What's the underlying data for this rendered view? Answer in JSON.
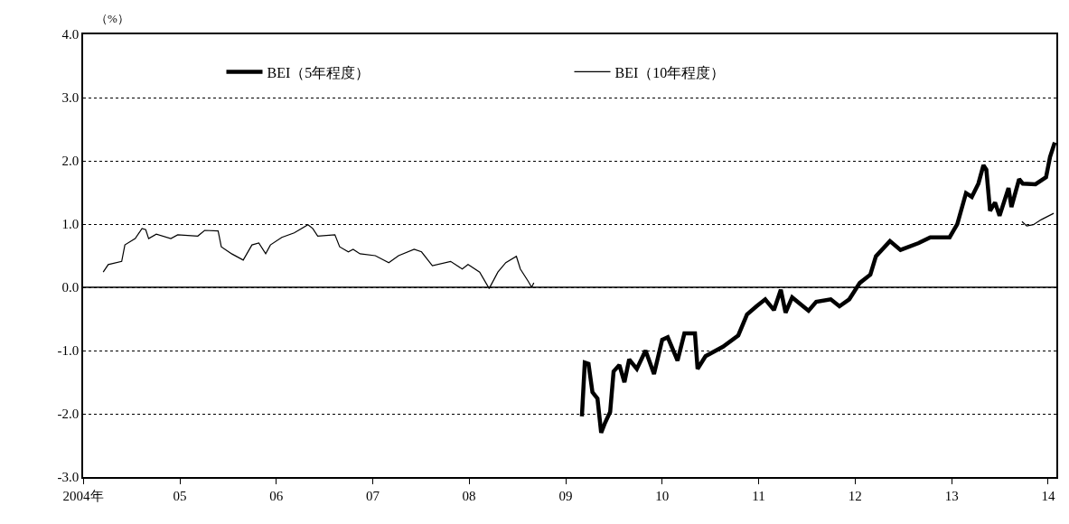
{
  "chart_data": {
    "type": "line",
    "ylabel": "（%）",
    "xlim": [
      "2004-01-01",
      "2014-02-01"
    ],
    "xticks": [
      {
        "value": "2004-01-01",
        "label": "2004年"
      },
      {
        "value": "2005-01-01",
        "label": "05"
      },
      {
        "value": "2006-01-01",
        "label": "06"
      },
      {
        "value": "2007-01-01",
        "label": "07"
      },
      {
        "value": "2008-01-01",
        "label": "08"
      },
      {
        "value": "2009-01-01",
        "label": "09"
      },
      {
        "value": "2010-01-01",
        "label": "10"
      },
      {
        "value": "2011-01-01",
        "label": "11"
      },
      {
        "value": "2012-01-01",
        "label": "12"
      },
      {
        "value": "2013-01-01",
        "label": "13"
      },
      {
        "value": "2014-01-01",
        "label": "14"
      }
    ],
    "ylim": [
      -3,
      4
    ],
    "yticks": [
      {
        "value": -3,
        "label": "-3.0"
      },
      {
        "value": -2,
        "label": "-2.0"
      },
      {
        "value": -1,
        "label": "-1.0"
      },
      {
        "value": 0,
        "label": "0.0"
      },
      {
        "value": 1,
        "label": "1.0"
      },
      {
        "value": 2,
        "label": "2.0"
      },
      {
        "value": 3,
        "label": "3.0"
      },
      {
        "value": 4,
        "label": "4.0"
      }
    ],
    "grid": "y",
    "legend": "top",
    "marker": "none",
    "ref_lines": [
      {
        "axis": "y",
        "value": 0,
        "color": "#000000",
        "line_style": "solid"
      }
    ],
    "series": [
      {
        "name": "BEI（5年程度）",
        "color": "#000000",
        "x": [
          "2009-03-03",
          "2009-03-14",
          "2009-03-28",
          "2009-04-12",
          "2009-05-01",
          "2009-05-15",
          "2009-05-30",
          "2009-06-18",
          "2009-07-01",
          "2009-07-23",
          "2009-08-11",
          "2009-08-29",
          "2009-09-27",
          "2009-10-30",
          "2009-12-01",
          "2010-01-01",
          "2010-01-22",
          "2010-02-28",
          "2010-03-26",
          "2010-05-05",
          "2010-05-15",
          "2010-06-14",
          "2010-08-19",
          "2010-10-16",
          "2010-11-18",
          "2010-12-24",
          "2011-01-26",
          "2011-02-28",
          "2011-03-26",
          "2011-04-13",
          "2011-05-08",
          "2011-07-09",
          "2011-08-07",
          "2011-10-01",
          "2011-11-03",
          "2011-12-10",
          "2012-01-19",
          "2012-02-28",
          "2012-03-20",
          "2012-05-12",
          "2012-06-21",
          "2012-08-29",
          "2012-10-12",
          "2012-12-24",
          "2013-01-22",
          "2013-02-24",
          "2013-03-18",
          "2013-04-12",
          "2013-05-01",
          "2013-05-12",
          "2013-05-26",
          "2013-06-14",
          "2013-07-01",
          "2013-08-04",
          "2013-08-15",
          "2013-09-13",
          "2013-09-27",
          "2013-11-14",
          "2013-12-24",
          "2014-01-08",
          "2014-01-26"
        ],
        "values": [
          -2.04,
          -1.19,
          -1.21,
          -1.66,
          -1.76,
          -2.3,
          -2.14,
          -1.97,
          -1.33,
          -1.23,
          -1.5,
          -1.14,
          -1.29,
          -1.0,
          -1.37,
          -0.83,
          -0.79,
          -1.16,
          -0.73,
          -0.73,
          -1.29,
          -1.09,
          -0.94,
          -0.76,
          -0.43,
          -0.3,
          -0.19,
          -0.36,
          -0.04,
          -0.4,
          -0.16,
          -0.37,
          -0.23,
          -0.19,
          -0.3,
          -0.19,
          0.07,
          0.2,
          0.49,
          0.73,
          0.59,
          0.7,
          0.79,
          0.79,
          1.0,
          1.49,
          1.43,
          1.64,
          1.93,
          1.86,
          1.21,
          1.34,
          1.13,
          1.57,
          1.27,
          1.71,
          1.64,
          1.63,
          1.74,
          2.06,
          2.29
        ]
      },
      {
        "name": "BEI（10年程度）",
        "color": "#000000",
        "x": [
          "2004-03-17",
          "2004-04-05",
          "2004-05-26",
          "2004-06-07",
          "2004-07-16",
          "2004-08-11",
          "2004-08-25",
          "2004-09-05",
          "2004-10-04",
          "2004-11-28",
          "2004-12-24",
          "2005-03-10",
          "2005-04-05",
          "2005-05-26",
          "2005-06-07",
          "2005-07-16",
          "2005-08-29",
          "2005-10-01",
          "2005-10-27",
          "2005-11-22",
          "2005-12-10",
          "2006-01-22",
          "2006-03-10",
          "2006-05-01",
          "2006-05-19",
          "2006-06-07",
          "2006-08-11",
          "2006-08-29",
          "2006-10-01",
          "2006-10-19",
          "2006-11-14",
          "2007-01-11",
          "2007-03-03",
          "2007-04-09",
          "2007-06-07",
          "2007-07-05",
          "2007-08-15",
          "2007-10-23",
          "2007-12-06",
          "2007-12-28",
          "2008-02-10",
          "2008-03-17",
          "2008-04-19",
          "2008-05-19",
          "2008-06-28",
          "2008-07-13",
          "2008-08-11",
          "2008-08-25",
          "2008-09-02",
          "2011-01-01",
          "2013-09-24",
          "2013-10-12",
          "2013-11-06",
          "2013-12-06",
          "2014-01-22"
        ],
        "values": [
          0.24,
          0.36,
          0.41,
          0.67,
          0.77,
          0.93,
          0.91,
          0.77,
          0.84,
          0.77,
          0.83,
          0.81,
          0.9,
          0.89,
          0.64,
          0.53,
          0.43,
          0.67,
          0.7,
          0.53,
          0.67,
          0.79,
          0.86,
          0.99,
          0.93,
          0.81,
          0.83,
          0.64,
          0.56,
          0.6,
          0.53,
          0.5,
          0.39,
          0.5,
          0.6,
          0.56,
          0.34,
          0.41,
          0.29,
          0.36,
          0.24,
          -0.02,
          0.24,
          0.39,
          0.49,
          0.29,
          0.1,
          0.0,
          0.07,
          null,
          1.04,
          0.97,
          0.99,
          1.07,
          1.17
        ]
      }
    ]
  }
}
